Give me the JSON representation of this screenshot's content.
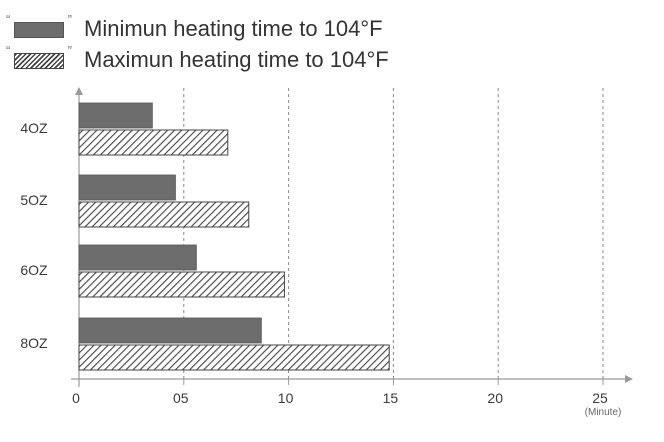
{
  "legend": {
    "min_label": "Minimun heating time to 104°F",
    "max_label": "Maximun heating time to 104°F"
  },
  "chart_data": {
    "type": "bar",
    "orientation": "horizontal",
    "categories": [
      "4OZ",
      "5OZ",
      "6OZ",
      "8OZ"
    ],
    "series": [
      {
        "name": "Minimun heating time to 104°F",
        "values": [
          3.5,
          4.6,
          5.6,
          8.7
        ],
        "color": "#6d6d6d",
        "pattern": "solid"
      },
      {
        "name": "Maximun heating time to 104°F",
        "values": [
          7.1,
          8.1,
          9.8,
          14.8
        ],
        "color": "#444444",
        "pattern": "hatched"
      }
    ],
    "x_ticks": [
      "0",
      "05",
      "10",
      "15",
      "20",
      "25"
    ],
    "x_tick_values": [
      0,
      5,
      10,
      15,
      20,
      25
    ],
    "xlabel": "(Minute)",
    "xlim": [
      0,
      25
    ],
    "grid": "vertical dashed",
    "legend_position": "top-left"
  },
  "colors": {
    "axis": "#9a9a9a",
    "grid": "#888888",
    "text": "#3a3a3a"
  }
}
